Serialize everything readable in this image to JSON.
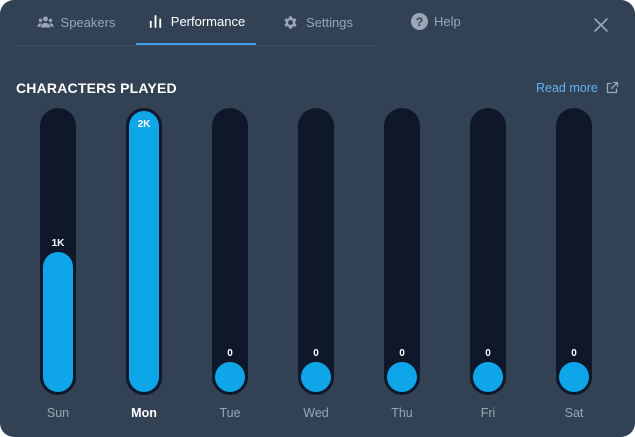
{
  "tabs": [
    {
      "label": "Speakers",
      "icon": "speakers-icon",
      "active": false
    },
    {
      "label": "Performance",
      "icon": "bar-chart-icon",
      "active": true
    },
    {
      "label": "Settings",
      "icon": "gear-icon",
      "active": false
    }
  ],
  "help": {
    "label": "Help",
    "icon": "help-icon"
  },
  "close": {
    "icon": "close-icon"
  },
  "section": {
    "title": "CHARACTERS PLAYED",
    "read_more": "Read more"
  },
  "colors": {
    "panel": "#334155",
    "track": "#0f172a",
    "bar": "#0ea5e9",
    "accent": "#3ea2e6",
    "link": "#5fb5f0"
  },
  "chart_data": {
    "type": "bar",
    "categories": [
      "Sun",
      "Mon",
      "Tue",
      "Wed",
      "Thu",
      "Fri",
      "Sat"
    ],
    "values": [
      1000,
      2000,
      0,
      0,
      0,
      0,
      0
    ],
    "value_labels": [
      "1K",
      "2K",
      "0",
      "0",
      "0",
      "0",
      "0"
    ],
    "ylim": [
      0,
      2000
    ],
    "highlighted": "Mon",
    "grid": false
  }
}
